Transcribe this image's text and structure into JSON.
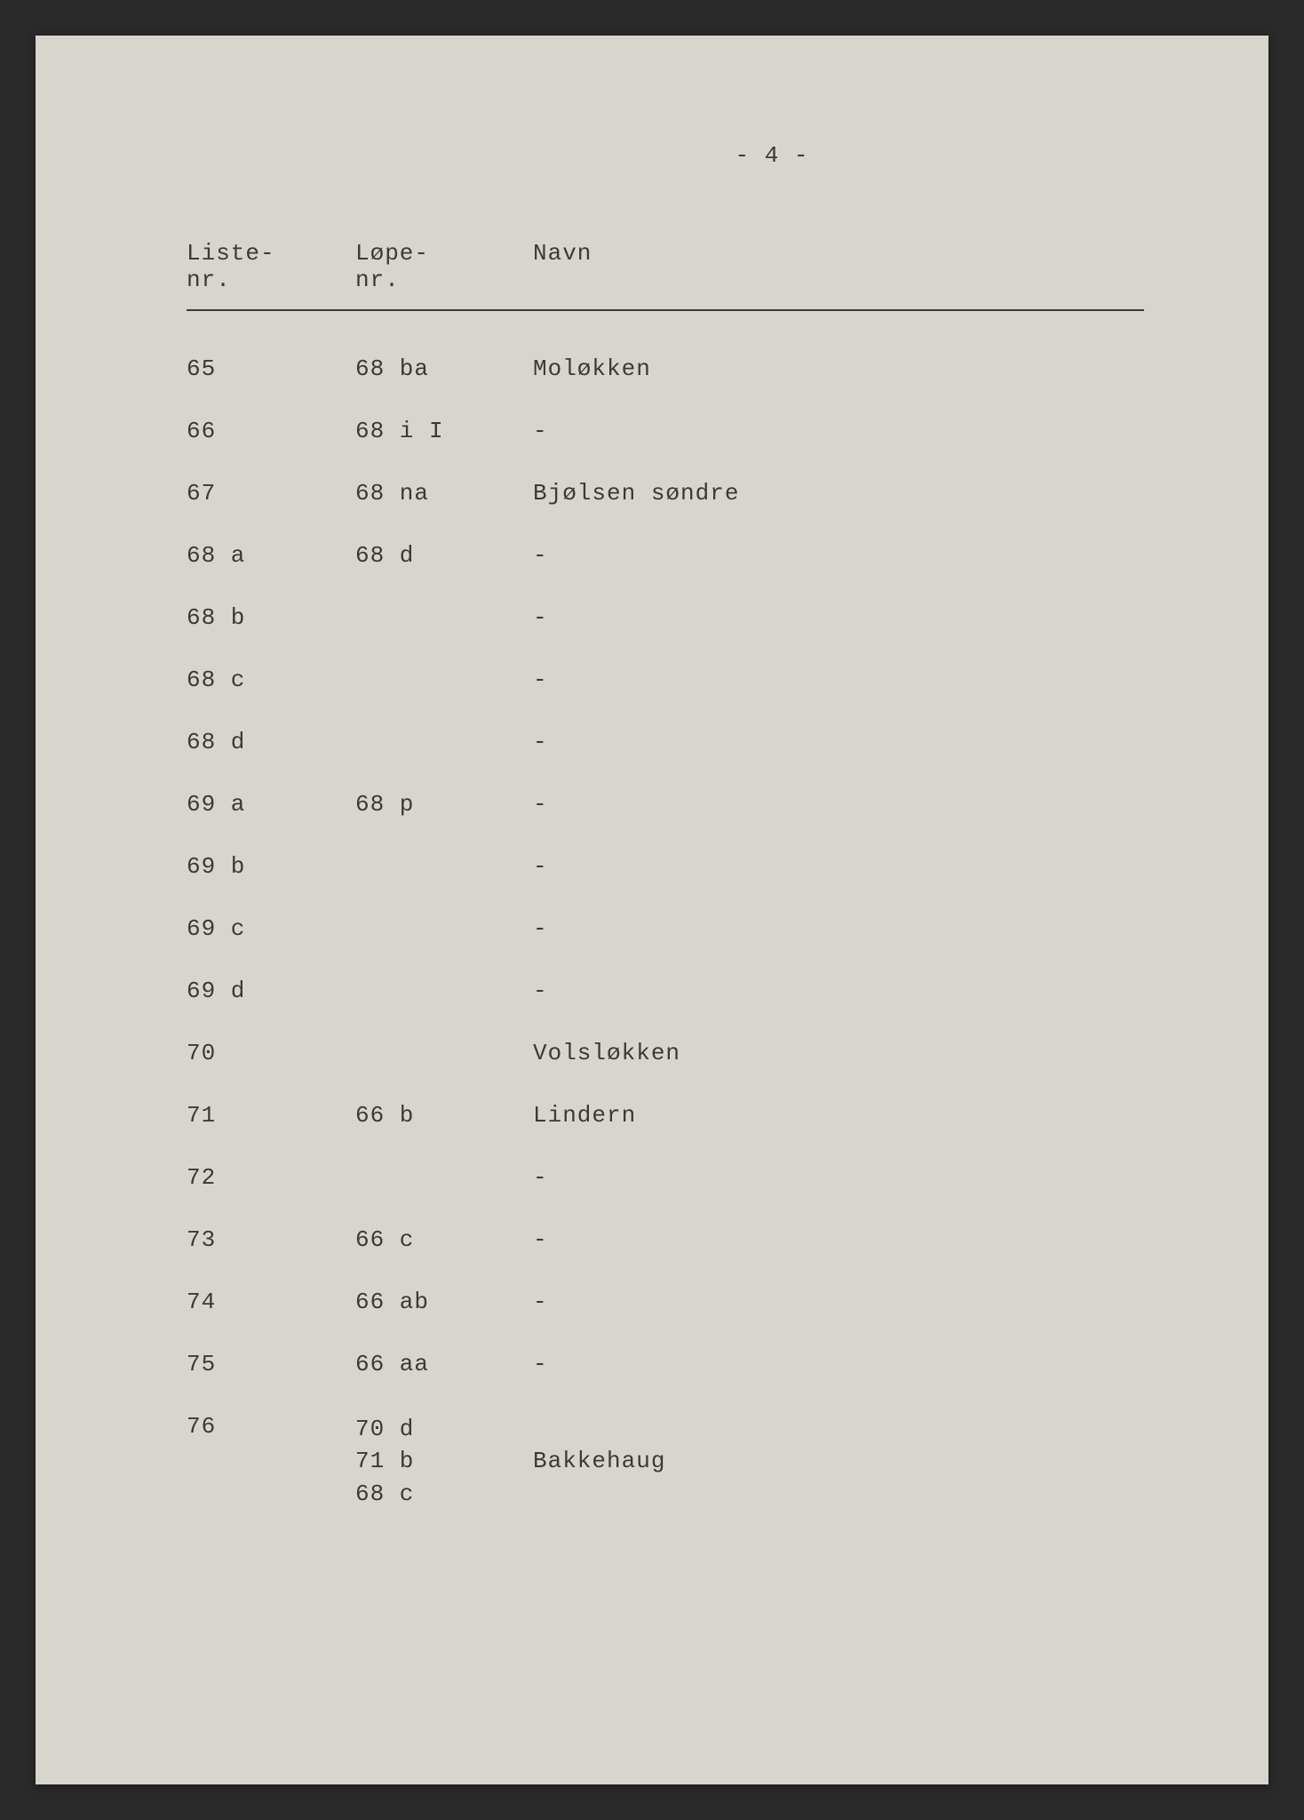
{
  "page_number": "- 4 -",
  "headers": {
    "col1_line1": "Liste-",
    "col1_line2": "nr.",
    "col2_line1": "Løpe-",
    "col2_line2": "nr.",
    "col3": "Navn"
  },
  "rows": [
    {
      "liste": "65",
      "lope": "68 ba",
      "navn": "Moløkken"
    },
    {
      "liste": "66",
      "lope": "68 i I",
      "navn": "-"
    },
    {
      "liste": "67",
      "lope": "68 na",
      "navn": "Bjølsen søndre"
    },
    {
      "liste": "68 a",
      "lope": "68 d",
      "navn": "-"
    },
    {
      "liste": "68 b",
      "lope": "",
      "navn": "-"
    },
    {
      "liste": "68 c",
      "lope": "",
      "navn": "-"
    },
    {
      "liste": "68 d",
      "lope": "",
      "navn": "-"
    },
    {
      "liste": "69 a",
      "lope": "68 p",
      "navn": "-"
    },
    {
      "liste": "69 b",
      "lope": "",
      "navn": "-"
    },
    {
      "liste": "69 c",
      "lope": "",
      "navn": "-"
    },
    {
      "liste": "69 d",
      "lope": "",
      "navn": "-"
    },
    {
      "liste": "70",
      "lope": "",
      "navn": "Volsløkken"
    },
    {
      "liste": "71",
      "lope": "66 b",
      "navn": "Lindern"
    },
    {
      "liste": "72",
      "lope": "",
      "navn": "-"
    },
    {
      "liste": "73",
      "lope": "66 c",
      "navn": "-"
    },
    {
      "liste": "74",
      "lope": "66 ab",
      "navn": "-"
    },
    {
      "liste": "75",
      "lope": "66 aa",
      "navn": "-"
    }
  ],
  "last_row": {
    "liste": "76",
    "lope_lines": [
      "70 d",
      "71 b",
      "68 c"
    ],
    "navn": "Bakkehaug"
  }
}
